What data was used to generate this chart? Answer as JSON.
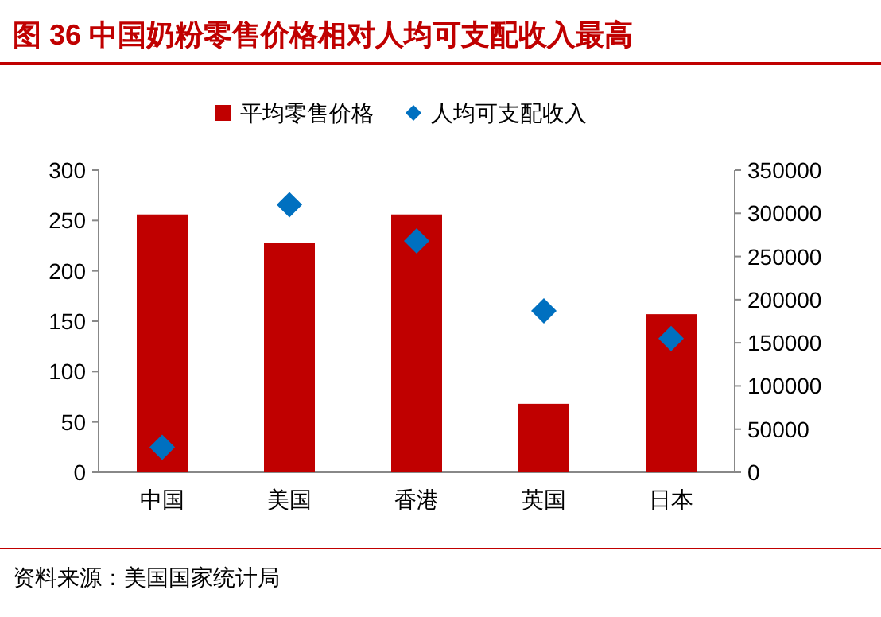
{
  "chart_data": {
    "type": "bar",
    "title": "图 36  中国奶粉零售价格相对人均可支配收入最高",
    "categories": [
      "中国",
      "美国",
      "香港",
      "英国",
      "日本"
    ],
    "series": [
      {
        "name": "平均零售价格",
        "color": "#c00000",
        "values": [
          256,
          228,
          256,
          68,
          157
        ]
      },
      {
        "name": "人均可支配收入",
        "type": "scatter",
        "axis": "y2",
        "marker": "diamond",
        "color": "#0070c0",
        "values": [
          29000,
          310000,
          268000,
          187000,
          155000
        ]
      }
    ],
    "ylim": [
      0,
      300
    ],
    "yticks": [
      0,
      50,
      100,
      150,
      200,
      250,
      300
    ],
    "y2lim": [
      0,
      350000
    ],
    "y2ticks": [
      0,
      50000,
      100000,
      150000,
      200000,
      250000,
      300000,
      350000
    ],
    "grid": false,
    "legend": "top",
    "annotations": [
      "资料来源：美国国家统计局"
    ]
  }
}
